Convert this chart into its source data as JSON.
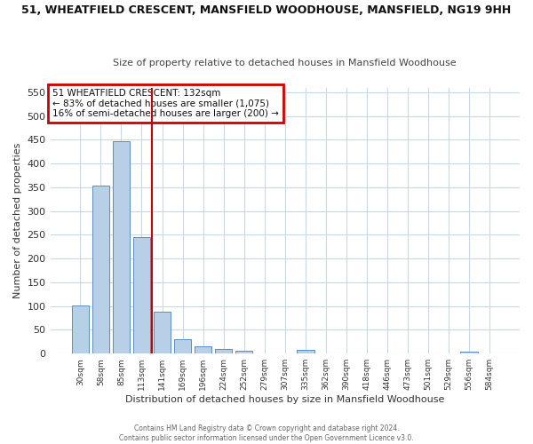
{
  "title": "51, WHEATFIELD CRESCENT, MANSFIELD WOODHOUSE, MANSFIELD, NG19 9HH",
  "subtitle": "Size of property relative to detached houses in Mansfield Woodhouse",
  "xlabel": "Distribution of detached houses by size in Mansfield Woodhouse",
  "ylabel": "Number of detached properties",
  "footer_line1": "Contains HM Land Registry data © Crown copyright and database right 2024.",
  "footer_line2": "Contains public sector information licensed under the Open Government Licence v3.0.",
  "annotation_line1": "51 WHEATFIELD CRESCENT: 132sqm",
  "annotation_line2": "← 83% of detached houses are smaller (1,075)",
  "annotation_line3": "16% of semi-detached houses are larger (200) →",
  "bar_color": "#b8cfe8",
  "bar_edge_color": "#5a8fc0",
  "property_line_color": "#cc0000",
  "annotation_box_color": "#cc0000",
  "background_color": "#ffffff",
  "grid_color": "#c8d8e8",
  "categories": [
    "30sqm",
    "58sqm",
    "85sqm",
    "113sqm",
    "141sqm",
    "169sqm",
    "196sqm",
    "224sqm",
    "252sqm",
    "279sqm",
    "307sqm",
    "335sqm",
    "362sqm",
    "390sqm",
    "418sqm",
    "446sqm",
    "473sqm",
    "501sqm",
    "529sqm",
    "556sqm",
    "584sqm"
  ],
  "values": [
    102,
    354,
    447,
    246,
    88,
    31,
    15,
    10,
    6,
    0,
    0,
    7,
    0,
    0,
    0,
    0,
    0,
    0,
    0,
    5,
    0
  ],
  "prop_line_idx": 3.5,
  "ylim": [
    0,
    560
  ],
  "yticks": [
    0,
    50,
    100,
    150,
    200,
    250,
    300,
    350,
    400,
    450,
    500,
    550
  ]
}
